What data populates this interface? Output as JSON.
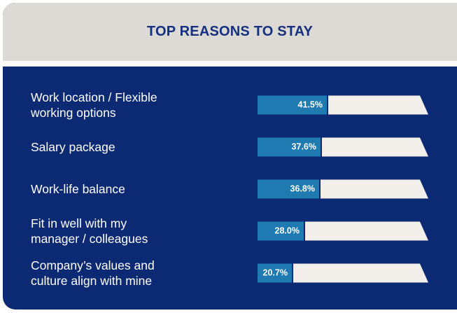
{
  "header": {
    "title": "TOP REASONS TO STAY"
  },
  "colors": {
    "panel_background": "#0c2a74",
    "header_background": "#dddad6",
    "header_text": "#14307e",
    "bar_fill": "#1f7ab1",
    "bar_track": "#f2eeea",
    "label_text": "#ffffff"
  },
  "chart_data": {
    "type": "bar",
    "orientation": "horizontal",
    "title": "TOP REASONS TO STAY",
    "xlabel": "",
    "ylabel": "",
    "xlim": [
      0,
      100
    ],
    "grid": false,
    "categories": [
      "Work location / Flexible\nworking options",
      "Salary package",
      "Work-life balance",
      "Fit in well with my\nmanager / colleagues",
      "Company’s values and\nculture align with mine"
    ],
    "values": [
      41.5,
      37.6,
      36.8,
      28.0,
      20.7
    ],
    "value_labels": [
      "41.5%",
      "37.6%",
      "36.8%",
      "28.0%",
      "20.7%"
    ]
  }
}
